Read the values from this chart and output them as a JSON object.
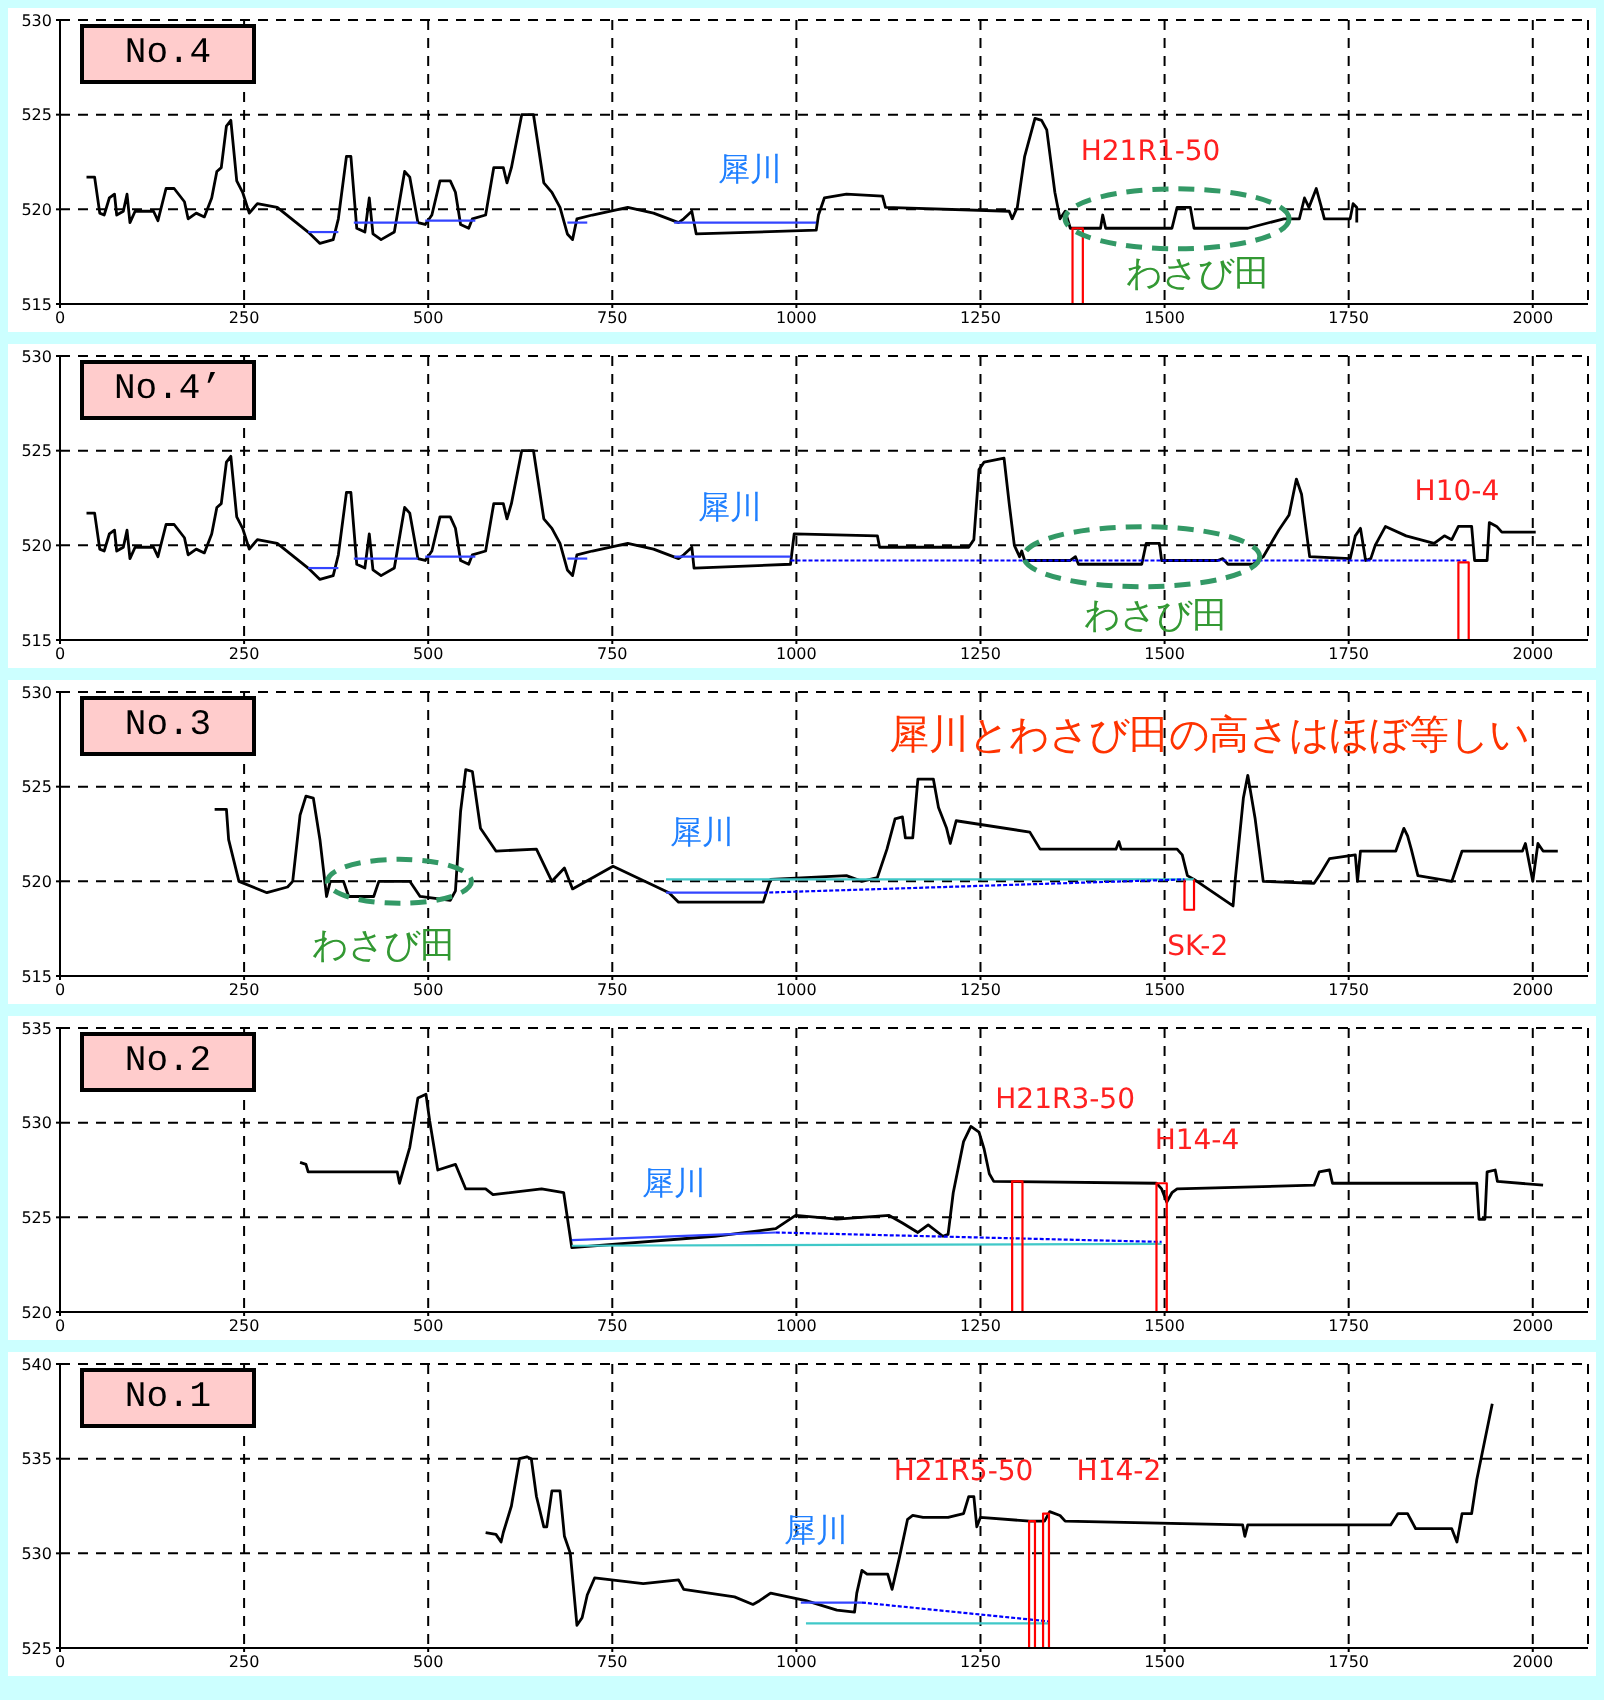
{
  "chart_data": [
    {
      "type": "line",
      "title": "No.4",
      "xlim": [
        0,
        2075
      ],
      "ylim": [
        515,
        530
      ],
      "xticks": [
        0,
        250,
        500,
        750,
        1000,
        1250,
        1500,
        1750,
        2000
      ],
      "yticks": [
        515,
        520,
        525,
        530
      ],
      "grid": true,
      "annotations": [
        "犀川",
        "H21R1-50",
        "わさび田"
      ],
      "series": [
        {
          "color": "#000000",
          "x": [
            36,
            47,
            54,
            60,
            67,
            74,
            77,
            86,
            91,
            95,
            102,
            127,
            133,
            144,
            155,
            169,
            174,
            185,
            196,
            206,
            213,
            219,
            226,
            232,
            240,
            248,
            257,
            268,
            295,
            337,
            353,
            371,
            378,
            389,
            395,
            403,
            414,
            420,
            425,
            436,
            454,
            468,
            475,
            486,
            496,
            505,
            516,
            530,
            537,
            544,
            555,
            560,
            578,
            589,
            602,
            607,
            613,
            627,
            643,
            657,
            668,
            679,
            689,
            696,
            702,
            723,
            771,
            806,
            840,
            847,
            858,
            864,
            1027,
            1030,
            1038,
            1068,
            1117,
            1121,
            1289,
            1293,
            1300,
            1310,
            1324,
            1333,
            1340,
            1351,
            1358,
            1365,
            1372,
            1413,
            1416,
            1420,
            1510,
            1517,
            1535,
            1540,
            1613,
            1662,
            1683,
            1690,
            1696,
            1706,
            1713,
            1717,
            1752,
            1756,
            1761,
            1761
          ],
          "values": [
            521.7,
            521.7,
            519.8,
            519.7,
            520.6,
            520.8,
            519.7,
            519.9,
            520.8,
            519.3,
            519.9,
            519.9,
            519.4,
            521.1,
            521.1,
            520.4,
            519.5,
            519.8,
            519.6,
            520.6,
            522,
            522.2,
            524.4,
            524.7,
            521.5,
            520.9,
            519.8,
            520.3,
            520.1,
            518.8,
            518.2,
            518.4,
            519.5,
            522.8,
            522.8,
            519,
            518.8,
            520.6,
            518.7,
            518.4,
            518.8,
            522,
            521.7,
            519.3,
            519.2,
            519.7,
            521.5,
            521.5,
            520.9,
            519.2,
            519,
            519.5,
            519.7,
            522.2,
            522.2,
            521.4,
            522.2,
            525,
            525,
            521.4,
            520.9,
            520.1,
            518.7,
            518.4,
            519.5,
            519.7,
            520.1,
            519.8,
            519.3,
            519.5,
            519.9,
            518.7,
            518.9,
            519.7,
            520.6,
            520.8,
            520.7,
            520.1,
            519.9,
            519.5,
            520.1,
            522.8,
            524.8,
            524.7,
            524.2,
            520.9,
            519.5,
            519.9,
            519,
            519,
            519.7,
            519,
            519,
            520.1,
            520.1,
            519,
            519,
            519.5,
            519.5,
            520.6,
            520.1,
            521.1,
            520.1,
            519.5,
            519.5,
            520.3,
            520.1,
            519.3
          ]
        },
        {
          "color": "#3344ff",
          "x": [
            337,
            378
          ],
          "values": [
            518.8,
            518.8
          ]
        },
        {
          "color": "#3344ff",
          "x": [
            399,
            486
          ],
          "values": [
            519.3,
            519.3
          ]
        },
        {
          "color": "#3344ff",
          "x": [
            496,
            564
          ],
          "values": [
            519.4,
            519.4
          ]
        },
        {
          "color": "#3344ff",
          "x": [
            689,
            716
          ],
          "values": [
            519.3,
            519.3
          ]
        },
        {
          "color": "#3344ff",
          "x": [
            834,
            1027
          ],
          "values": [
            519.3,
            519.3
          ]
        },
        {
          "color": "#ff0000",
          "x": [
            1375,
            1375,
            1389,
            1389
          ],
          "values": [
            515,
            519,
            519,
            515
          ]
        }
      ]
    },
    {
      "type": "line",
      "title": "No.4’",
      "xlim": [
        0,
        2075
      ],
      "ylim": [
        515,
        530
      ],
      "xticks": [
        0,
        250,
        500,
        750,
        1000,
        1250,
        1500,
        1750,
        2000
      ],
      "yticks": [
        515,
        520,
        525,
        530
      ],
      "grid": true,
      "annotations": [
        "犀川",
        "H10-4",
        "わさび田"
      ],
      "series": [
        {
          "color": "#000000",
          "x": [
            36,
            47,
            54,
            60,
            67,
            74,
            77,
            86,
            91,
            95,
            102,
            127,
            133,
            144,
            155,
            169,
            174,
            185,
            196,
            206,
            213,
            219,
            226,
            232,
            240,
            248,
            257,
            268,
            295,
            337,
            353,
            371,
            378,
            389,
            395,
            403,
            414,
            420,
            425,
            436,
            454,
            468,
            475,
            486,
            496,
            505,
            516,
            530,
            537,
            544,
            555,
            560,
            578,
            589,
            602,
            607,
            613,
            627,
            643,
            657,
            668,
            679,
            689,
            696,
            702,
            723,
            771,
            806,
            840,
            847,
            858,
            861,
            992,
            997,
            1110,
            1113,
            1234,
            1241,
            1248,
            1255,
            1282,
            1289,
            1296,
            1303,
            1306,
            1310,
            1372,
            1379,
            1383,
            1469,
            1475,
            1493,
            1496,
            1572,
            1579,
            1586,
            1620,
            1634,
            1655,
            1669,
            1679,
            1686,
            1697,
            1752,
            1759,
            1766,
            1773,
            1780,
            1786,
            1800,
            1828,
            1866,
            1880,
            1890,
            1899,
            1917,
            1921,
            1938,
            1941,
            1951,
            1958,
            2004
          ],
          "values": [
            521.7,
            521.7,
            519.8,
            519.7,
            520.6,
            520.8,
            519.7,
            519.9,
            520.8,
            519.3,
            519.9,
            519.9,
            519.4,
            521.1,
            521.1,
            520.4,
            519.5,
            519.8,
            519.6,
            520.6,
            522,
            522.2,
            524.4,
            524.7,
            521.5,
            520.9,
            519.8,
            520.3,
            520.1,
            518.8,
            518.2,
            518.4,
            519.5,
            522.8,
            522.8,
            519,
            518.8,
            520.6,
            518.7,
            518.4,
            518.8,
            522,
            521.7,
            519.3,
            519.2,
            519.7,
            521.5,
            521.5,
            520.9,
            519.2,
            519,
            519.5,
            519.7,
            522.2,
            522.2,
            521.4,
            522.2,
            525,
            525,
            521.4,
            520.9,
            520.1,
            518.7,
            518.4,
            519.5,
            519.7,
            520.1,
            519.8,
            519.3,
            519.5,
            519.9,
            518.8,
            519,
            520.6,
            520.5,
            519.9,
            519.9,
            520.3,
            524,
            524.4,
            524.6,
            522.2,
            520,
            519.4,
            519.7,
            519.2,
            519.2,
            519.4,
            519,
            519,
            520.1,
            520.1,
            519.2,
            519.2,
            519.3,
            519,
            519,
            519.4,
            520.8,
            521.6,
            523.5,
            522.7,
            519.4,
            519.3,
            520.5,
            520.9,
            519.2,
            519.3,
            520,
            521,
            520.5,
            520.1,
            520.5,
            520.3,
            521,
            521,
            519.2,
            519.2,
            521.2,
            521,
            520.7,
            520.7
          ]
        },
        {
          "color": "#3344ff",
          "x": [
            337,
            378
          ],
          "values": [
            518.8,
            518.8
          ]
        },
        {
          "color": "#3344ff",
          "x": [
            399,
            486
          ],
          "values": [
            519.3,
            519.3
          ]
        },
        {
          "color": "#3344ff",
          "x": [
            496,
            564
          ],
          "values": [
            519.4,
            519.4
          ]
        },
        {
          "color": "#3344ff",
          "x": [
            689,
            716
          ],
          "values": [
            519.3,
            519.3
          ]
        },
        {
          "color": "#3344ff",
          "x": [
            834,
            992
          ],
          "values": [
            519.4,
            519.4
          ]
        },
        {
          "color": "#0000ff",
          "line_style": "dashed",
          "x": [
            992,
            1910
          ],
          "values": [
            519.2,
            519.2
          ]
        },
        {
          "color": "#ff0000",
          "x": [
            1899,
            1899,
            1913,
            1913
          ],
          "values": [
            515,
            519.1,
            519.1,
            515
          ]
        }
      ]
    },
    {
      "type": "line",
      "title": "No.3",
      "xlim": [
        0,
        2075
      ],
      "ylim": [
        515,
        530
      ],
      "xticks": [
        0,
        250,
        500,
        750,
        1000,
        1250,
        1500,
        1750,
        2000
      ],
      "yticks": [
        515,
        520,
        525,
        530
      ],
      "grid": true,
      "annotations": [
        "犀川",
        "SK-2",
        "わさび田",
        "犀川とわさび田の高さはほぼ等しい"
      ],
      "series": [
        {
          "color": "#000000",
          "x": [
            210,
            226,
            229,
            243,
            281,
            309,
            316,
            326,
            334,
            344,
            353,
            362,
            367,
            385,
            392,
            426,
            433,
            475,
            489,
            530,
            537,
            544,
            551,
            560,
            571,
            592,
            647,
            668,
            685,
            696,
            751,
            827,
            840,
            955,
            965,
            1068,
            1089,
            1110,
            1123,
            1134,
            1144,
            1148,
            1158,
            1165,
            1186,
            1193,
            1204,
            1209,
            1217,
            1317,
            1331,
            1434,
            1438,
            1441,
            1517,
            1524,
            1531,
            1540,
            1593,
            1596,
            1607,
            1613,
            1623,
            1634,
            1703,
            1710,
            1724,
            1759,
            1762,
            1766,
            1814,
            1825,
            1830,
            1835,
            1844,
            1890,
            1897,
            1904,
            1986,
            1990,
            2000,
            2007,
            2014,
            2034
          ],
          "values": [
            523.8,
            523.8,
            522.2,
            520,
            519.4,
            519.7,
            520,
            523.5,
            524.5,
            524.4,
            522.2,
            519.2,
            520,
            520,
            519.2,
            519.2,
            520,
            520,
            519.2,
            519,
            519.5,
            523.7,
            525.9,
            525.8,
            522.8,
            521.6,
            521.7,
            520,
            520.7,
            519.6,
            520.8,
            519.4,
            518.9,
            518.9,
            520.1,
            520.3,
            520,
            520.2,
            521.7,
            523.3,
            523.4,
            522.3,
            522.3,
            525.4,
            525.4,
            523.9,
            522.8,
            522,
            523.2,
            522.6,
            521.7,
            521.7,
            522.1,
            521.7,
            521.7,
            521.4,
            520.3,
            520.1,
            518.7,
            520.1,
            524.4,
            525.6,
            523.3,
            520,
            519.9,
            520.3,
            521.2,
            521.4,
            520,
            521.6,
            521.6,
            522.8,
            522.4,
            521.7,
            520.3,
            520,
            520.8,
            521.6,
            521.6,
            522,
            520,
            522,
            521.6,
            521.6
          ]
        },
        {
          "color": "#3344ff",
          "x": [
            823,
            955
          ],
          "values": [
            519.4,
            519.4
          ]
        },
        {
          "color": "#40c8c8",
          "x": [
            823,
            1540
          ],
          "values": [
            520.1,
            520.1
          ]
        },
        {
          "color": "#ff0000",
          "x": [
            1527,
            1527,
            1540,
            1540
          ],
          "values": [
            520.1,
            518.5,
            518.5,
            520.1
          ]
        },
        {
          "color": "#0000ff",
          "line_style": "dashed",
          "x": [
            955,
            1527
          ],
          "values": [
            519.4,
            520.1
          ]
        }
      ]
    },
    {
      "type": "line",
      "title": "No.2",
      "xlim": [
        0,
        2075
      ],
      "ylim": [
        520,
        535
      ],
      "xticks": [
        0,
        250,
        500,
        750,
        1000,
        1250,
        1500,
        1750,
        2000
      ],
      "yticks": [
        520,
        525,
        530,
        535
      ],
      "grid": true,
      "annotations": [
        "犀川",
        "H21R3-50",
        "H14-4"
      ],
      "series": [
        {
          "color": "#000000",
          "x": [
            326,
            334,
            337,
            458,
            461,
            475,
            486,
            497,
            502,
            513,
            537,
            551,
            578,
            588,
            654,
            684,
            695,
            889,
            972,
            999,
            1055,
            1126,
            1144,
            1165,
            1179,
            1199,
            1206,
            1213,
            1227,
            1237,
            1248,
            1255,
            1262,
            1268,
            1489,
            1496,
            1503,
            1510,
            1517,
            1703,
            1710,
            1724,
            1728,
            1924,
            1927,
            1935,
            1938,
            1949,
            1952,
            2014
          ],
          "values": [
            527.9,
            527.8,
            527.4,
            527.4,
            526.8,
            528.7,
            531.3,
            531.5,
            530.1,
            527.5,
            527.8,
            526.5,
            526.5,
            526.2,
            526.5,
            526.3,
            523.4,
            524,
            524.4,
            525.1,
            524.9,
            525.1,
            524.7,
            524.2,
            524.6,
            524,
            524.1,
            526.3,
            529,
            529.8,
            529.5,
            528.6,
            527.3,
            526.9,
            526.8,
            526.5,
            525.8,
            526.3,
            526.5,
            526.7,
            527.4,
            527.5,
            526.8,
            526.8,
            524.9,
            524.9,
            527.4,
            527.5,
            526.9,
            526.7
          ]
        },
        {
          "color": "#3344ff",
          "x": [
            695,
            972
          ],
          "values": [
            523.8,
            524.2
          ]
        },
        {
          "color": "#0000ff",
          "line_style": "dashed",
          "x": [
            972,
            1496
          ],
          "values": [
            524.2,
            523.7
          ]
        },
        {
          "color": "#40c8c8",
          "x": [
            695,
            1496
          ],
          "values": [
            523.5,
            523.6
          ]
        },
        {
          "color": "#ff0000",
          "x": [
            1293,
            1293,
            1307,
            1307
          ],
          "values": [
            520,
            526.9,
            526.9,
            520
          ]
        },
        {
          "color": "#ff0000",
          "x": [
            1489,
            1489,
            1503,
            1503
          ],
          "values": [
            520,
            526.8,
            526.8,
            520
          ]
        }
      ]
    },
    {
      "type": "line",
      "title": "No.1",
      "xlim": [
        0,
        2075
      ],
      "ylim": [
        525,
        540
      ],
      "xticks": [
        0,
        250,
        500,
        750,
        1000,
        1250,
        1500,
        1750,
        2000
      ],
      "yticks": [
        525,
        530,
        535,
        540
      ],
      "grid": true,
      "annotations": [
        "犀川",
        "H21R5-50",
        "H14-2"
      ],
      "series": [
        {
          "color": "#000000",
          "x": [
            578,
            592,
            599,
            602,
            613,
            624,
            634,
            640,
            647,
            657,
            661,
            668,
            679,
            685,
            693,
            702,
            709,
            716,
            726,
            792,
            840,
            847,
            916,
            941,
            950,
            965,
            1013,
            1055,
            1079,
            1082,
            1089,
            1096,
            1124,
            1130,
            1140,
            1151,
            1158,
            1172,
            1206,
            1227,
            1234,
            1241,
            1245,
            1250,
            1317,
            1337,
            1344,
            1358,
            1365,
            1606,
            1609,
            1613,
            1807,
            1817,
            1830,
            1841,
            1890,
            1897,
            1904,
            1917,
            1924,
            1945
          ],
          "values": [
            531.1,
            531,
            530.6,
            531.1,
            532.5,
            535,
            535.1,
            535,
            533,
            531.4,
            531.4,
            533.3,
            533.3,
            530.9,
            530,
            526.2,
            526.6,
            527.8,
            528.7,
            528.4,
            528.6,
            528.1,
            527.7,
            527.3,
            527.5,
            527.9,
            527.5,
            527,
            526.9,
            527.9,
            529.1,
            528.9,
            528.9,
            528.1,
            529.8,
            531.8,
            532,
            531.9,
            531.9,
            532.1,
            533,
            533,
            531.4,
            531.9,
            531.7,
            531.7,
            532.2,
            532,
            531.7,
            531.5,
            530.9,
            531.5,
            531.5,
            532.1,
            532.1,
            531.3,
            531.3,
            530.6,
            532.1,
            532.1,
            533.9,
            537.9
          ]
        },
        {
          "color": "#3344ff",
          "x": [
            1006,
            1089
          ],
          "values": [
            527.4,
            527.4
          ]
        },
        {
          "color": "#0000ff",
          "line_style": "dashed",
          "x": [
            1089,
            1344
          ],
          "values": [
            527.4,
            526.4
          ]
        },
        {
          "color": "#40c8c8",
          "x": [
            1013,
            1344
          ],
          "values": [
            526.3,
            526.3
          ]
        },
        {
          "color": "#ff0000",
          "x": [
            1316,
            1316,
            1324,
            1324
          ],
          "values": [
            525,
            531.7,
            531.7,
            525
          ]
        },
        {
          "color": "#ff0000",
          "x": [
            1335,
            1335,
            1343,
            1343
          ],
          "values": [
            525,
            532.1,
            532.1,
            525
          ]
        }
      ]
    }
  ]
}
